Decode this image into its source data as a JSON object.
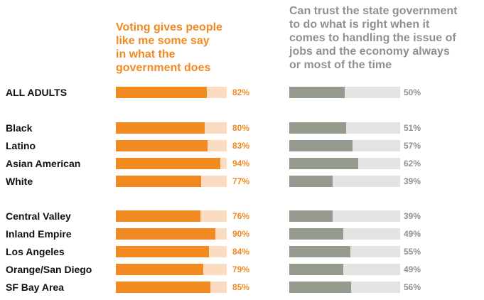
{
  "chart_data": [
    {
      "type": "bar",
      "orientation": "horizontal",
      "title": "Voting gives people\nlike me some say\nin what the\ngovernment does",
      "categories": [
        "ALL ADULTS",
        "Black",
        "Latino",
        "Asian American",
        "White",
        "Central Valley",
        "Inland Empire",
        "Los Angeles",
        "Orange/San Diego",
        "SF Bay Area"
      ],
      "values": [
        82,
        80,
        83,
        94,
        77,
        76,
        90,
        84,
        79,
        85
      ],
      "value_labels": [
        "82%",
        "80%",
        "83%",
        "94%",
        "77%",
        "76%",
        "90%",
        "84%",
        "79%",
        "85%"
      ],
      "xlim": [
        0,
        100
      ],
      "colors": {
        "fill": "#f18a21",
        "track": "#fbdcc1",
        "label": "#f18a21"
      }
    },
    {
      "type": "bar",
      "orientation": "horizontal",
      "title": "Can trust the state government\nto do what is right when it\ncomes to handling the issue of\njobs and the economy always\nor most of the time",
      "categories": [
        "ALL ADULTS",
        "Black",
        "Latino",
        "Asian American",
        "White",
        "Central Valley",
        "Inland Empire",
        "Los Angeles",
        "Orange/San Diego",
        "SF Bay Area"
      ],
      "values": [
        50,
        51,
        57,
        62,
        39,
        39,
        49,
        55,
        49,
        56
      ],
      "value_labels": [
        "50%",
        "51%",
        "57%",
        "62%",
        "39%",
        "39%",
        "49%",
        "55%",
        "49%",
        "56%"
      ],
      "xlim": [
        0,
        100
      ],
      "colors": {
        "fill": "#959a8e",
        "track": "#e3e4e1",
        "label": "#8f918f"
      }
    }
  ]
}
